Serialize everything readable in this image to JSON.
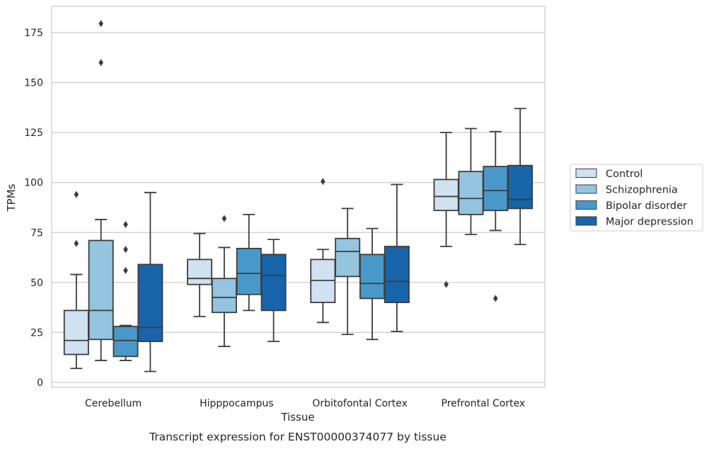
{
  "chart_data": {
    "type": "box",
    "xlabel": "Tissue",
    "ylabel": "TPMs",
    "caption": "Transcript expression for ENST00000374077 by tissue",
    "ylim": [
      -3,
      188
    ],
    "yticks": [
      0,
      25,
      50,
      75,
      100,
      125,
      150,
      175
    ],
    "grid": "horizontal",
    "legend_position": "right",
    "categories": [
      "Cerebellum",
      "Hipppocampus",
      "Orbitofontal Cortex",
      "Prefrontal Cortex"
    ],
    "series": [
      {
        "name": "Control",
        "color": "#d0e1f2",
        "boxes": [
          {
            "whislo": 7,
            "q1": 14,
            "med": 21,
            "q3": 36,
            "whishi": 54,
            "fliers": [
              69.5,
              94
            ]
          },
          {
            "whislo": 33,
            "q1": 49,
            "med": 52,
            "q3": 61.5,
            "whishi": 74.5,
            "fliers": []
          },
          {
            "whislo": 30,
            "q1": 40,
            "med": 51,
            "q3": 61.5,
            "whishi": 66.5,
            "fliers": [
              100.5
            ]
          },
          {
            "whislo": 68,
            "q1": 86,
            "med": 93,
            "q3": 101.5,
            "whishi": 125,
            "fliers": [
              49
            ]
          }
        ]
      },
      {
        "name": "Schizophrenia",
        "color": "#94c4df",
        "boxes": [
          {
            "whislo": 11,
            "q1": 21.5,
            "med": 36,
            "q3": 71,
            "whishi": 81.5,
            "fliers": [
              160,
              179.5
            ]
          },
          {
            "whislo": 18,
            "q1": 35,
            "med": 42.5,
            "q3": 52,
            "whishi": 67.5,
            "fliers": [
              82
            ]
          },
          {
            "whislo": 24,
            "q1": 53,
            "med": 65.5,
            "q3": 72,
            "whishi": 87,
            "fliers": []
          },
          {
            "whislo": 74,
            "q1": 84,
            "med": 92,
            "q3": 105.5,
            "whishi": 127,
            "fliers": []
          }
        ]
      },
      {
        "name": "Bipolar disorder",
        "color": "#4a98c9",
        "boxes": [
          {
            "whislo": 11,
            "q1": 13,
            "med": 21,
            "q3": 28,
            "whishi": 28.5,
            "fliers": [
              56,
              66.5,
              79
            ]
          },
          {
            "whislo": 36,
            "q1": 44,
            "med": 54.5,
            "q3": 67,
            "whishi": 84,
            "fliers": []
          },
          {
            "whislo": 21.5,
            "q1": 42,
            "med": 49.5,
            "q3": 64,
            "whishi": 77,
            "fliers": []
          },
          {
            "whislo": 76,
            "q1": 86,
            "med": 96,
            "q3": 108,
            "whishi": 125.5,
            "fliers": [
              42
            ]
          }
        ]
      },
      {
        "name": "Major depression",
        "color": "#1764ab",
        "boxes": [
          {
            "whislo": 5.5,
            "q1": 20.5,
            "med": 27.5,
            "q3": 59,
            "whishi": 95,
            "fliers": []
          },
          {
            "whislo": 20.5,
            "q1": 36,
            "med": 53.5,
            "q3": 64,
            "whishi": 71.5,
            "fliers": []
          },
          {
            "whislo": 25.5,
            "q1": 40,
            "med": 50.5,
            "q3": 68,
            "whishi": 99,
            "fliers": []
          },
          {
            "whislo": 69,
            "q1": 87,
            "med": 91.5,
            "q3": 108.5,
            "whishi": 137,
            "fliers": []
          }
        ]
      }
    ]
  }
}
